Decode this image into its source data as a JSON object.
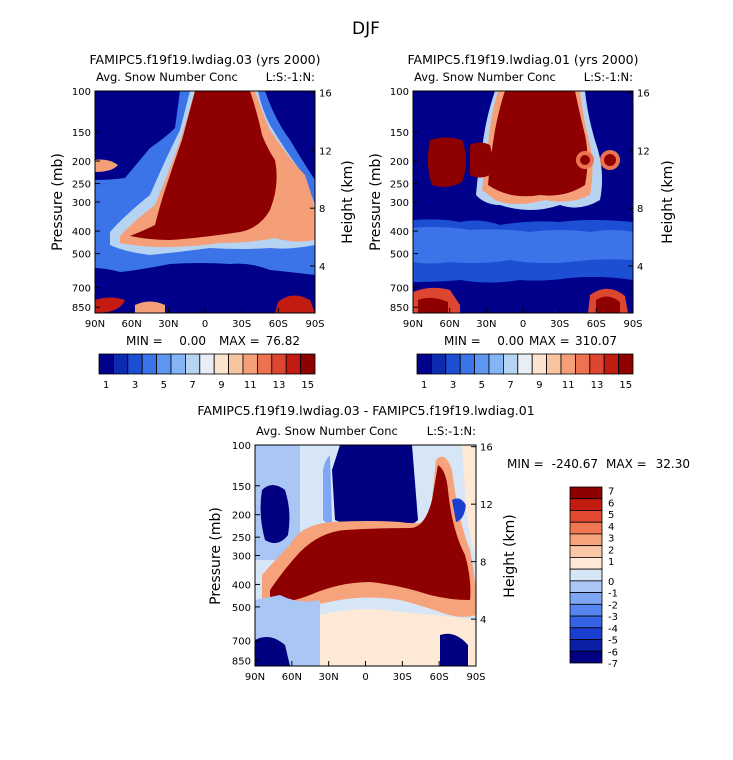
{
  "page_title": "DJF",
  "palette": {
    "abs": [
      "#00008a",
      "#0c2bb0",
      "#1d4fd4",
      "#3b73e8",
      "#5d95f2",
      "#86b5f5",
      "#b6d3f2",
      "#e8eef5",
      "#fbe3cf",
      "#f9c4a0",
      "#f59f78",
      "#ec7350",
      "#dd4630",
      "#c21c12",
      "#8f0000"
    ],
    "diff": [
      "#000080",
      "#0a1fa6",
      "#1a3fd0",
      "#3463e6",
      "#5785f0",
      "#7ea6f4",
      "#a9c6f5",
      "#d6e6f7",
      "#fde9d6",
      "#fac8a6",
      "#f6a27b",
      "#ef7652",
      "#e14a2f",
      "#c31d12",
      "#8f0000"
    ]
  },
  "chart_data": [
    {
      "type": "heatmap",
      "title": "FAMIPC5.f19f19.lwdiag.03 (yrs 2000)",
      "subtitle": "Avg. Snow Number Conc",
      "level_label": "L:S:-1:N:",
      "ylabel": "Pressure (mb)",
      "ylabel_right": "Height (km)",
      "x_ticks": [
        "90N",
        "60N",
        "30N",
        "0",
        "30S",
        "60S",
        "90S"
      ],
      "y_ticks": [
        "100",
        "150",
        "200",
        "250",
        "300",
        "400",
        "500",
        "700",
        "850"
      ],
      "y_ticks_right": [
        "16",
        "12",
        "8",
        "4"
      ],
      "min_label": "MIN =",
      "min_value": "0.00",
      "max_label": "MAX =",
      "max_value": "76.82",
      "colorbar_labels": [
        "1",
        "3",
        "5",
        "7",
        "9",
        "11",
        "13",
        "15"
      ]
    },
    {
      "type": "heatmap",
      "title": "FAMIPC5.f19f19.lwdiag.01 (yrs 2000)",
      "subtitle": "Avg. Snow Number Conc",
      "level_label": "L:S:-1:N:",
      "ylabel": "Pressure (mb)",
      "ylabel_right": "Height (km)",
      "x_ticks": [
        "90N",
        "60N",
        "30N",
        "0",
        "30S",
        "60S",
        "90S"
      ],
      "y_ticks": [
        "100",
        "150",
        "200",
        "250",
        "300",
        "400",
        "500",
        "700",
        "850"
      ],
      "y_ticks_right": [
        "16",
        "12",
        "8",
        "4"
      ],
      "min_label": "MIN =",
      "min_value": "0.00",
      "max_label": "MAX =",
      "max_value": "310.07",
      "colorbar_labels": [
        "1",
        "3",
        "5",
        "7",
        "9",
        "11",
        "13",
        "15"
      ]
    },
    {
      "type": "heatmap",
      "title": "FAMIPC5.f19f19.lwdiag.03 - FAMIPC5.f19f19.lwdiag.01",
      "subtitle": "Avg. Snow Number Conc",
      "level_label": "L:S:-1:N:",
      "ylabel": "Pressure (mb)",
      "ylabel_right": "Height (km)",
      "x_ticks": [
        "90N",
        "60N",
        "30N",
        "0",
        "30S",
        "60S",
        "90S"
      ],
      "y_ticks": [
        "100",
        "150",
        "200",
        "250",
        "300",
        "400",
        "500",
        "700",
        "850"
      ],
      "y_ticks_right": [
        "16",
        "12",
        "8",
        "4"
      ],
      "min_label": "MIN =",
      "min_value": "-240.67",
      "max_label": "MAX =",
      "max_value": "32.30",
      "colorbar_labels": [
        "7",
        "6",
        "5",
        "4",
        "3",
        "2",
        "1",
        "0",
        "-1",
        "-2",
        "-3",
        "-4",
        "-5",
        "-6",
        "-7"
      ]
    }
  ]
}
